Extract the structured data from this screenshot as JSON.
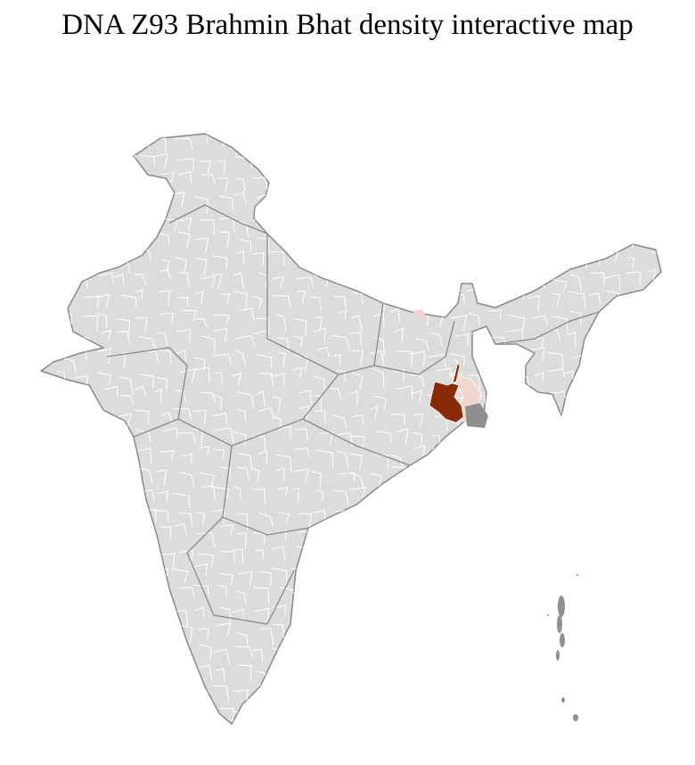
{
  "title": "DNA Z93 Brahmin Bhat density interactive map",
  "colors": {
    "land": "#dcdcdc",
    "border": "#8a8a8a",
    "district_line": "#ffffff",
    "high_density": "#8b2a08",
    "low_density": "#f0d6cc",
    "mangrove": "#8f8f8f"
  },
  "regions": [
    {
      "name": "high-density-districts",
      "level": "high"
    },
    {
      "name": "low-density-districts",
      "level": "low"
    }
  ]
}
